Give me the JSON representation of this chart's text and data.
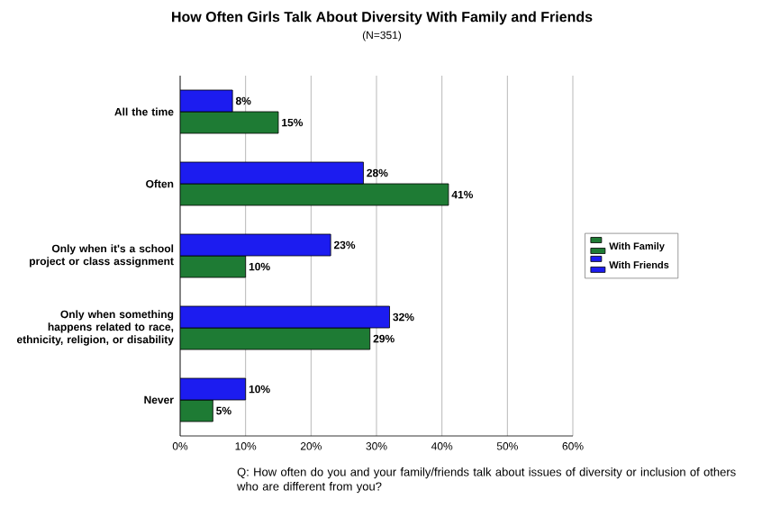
{
  "chart_data": {
    "type": "bar",
    "orientation": "horizontal",
    "title": "How Often Girls Talk About Diversity With Family and Friends",
    "subtitle": "(N=351)",
    "categories": [
      "All the time",
      "Often",
      "Only when it's a school project or class assignment",
      "Only when something happens related to race, ethnicity, religion, or disability",
      "Never"
    ],
    "series": [
      {
        "name": "With Family",
        "color": "#1e7b34",
        "values": [
          15,
          41,
          10,
          29,
          5
        ],
        "value_labels": [
          "15%",
          "41%",
          "10%",
          "29%",
          "5%"
        ]
      },
      {
        "name": "With Friends",
        "color": "#1c1cf0",
        "values": [
          8,
          28,
          23,
          32,
          10
        ],
        "value_labels": [
          "8%",
          "28%",
          "23%",
          "32%",
          "10%"
        ]
      }
    ],
    "xlim": [
      0,
      60
    ],
    "xticks": [
      {
        "value": 0,
        "label": "0%"
      },
      {
        "value": 10,
        "label": "10%"
      },
      {
        "value": 20,
        "label": "20%"
      },
      {
        "value": 30,
        "label": "30%"
      },
      {
        "value": 40,
        "label": "40%"
      },
      {
        "value": 50,
        "label": "50%"
      },
      {
        "value": 60,
        "label": "60%"
      }
    ],
    "grid": "x",
    "legend": "right",
    "annotations": [
      "Q:  How often do you and your family/friends talk about issues of diversity or inclusion of others who are different from you?"
    ]
  }
}
